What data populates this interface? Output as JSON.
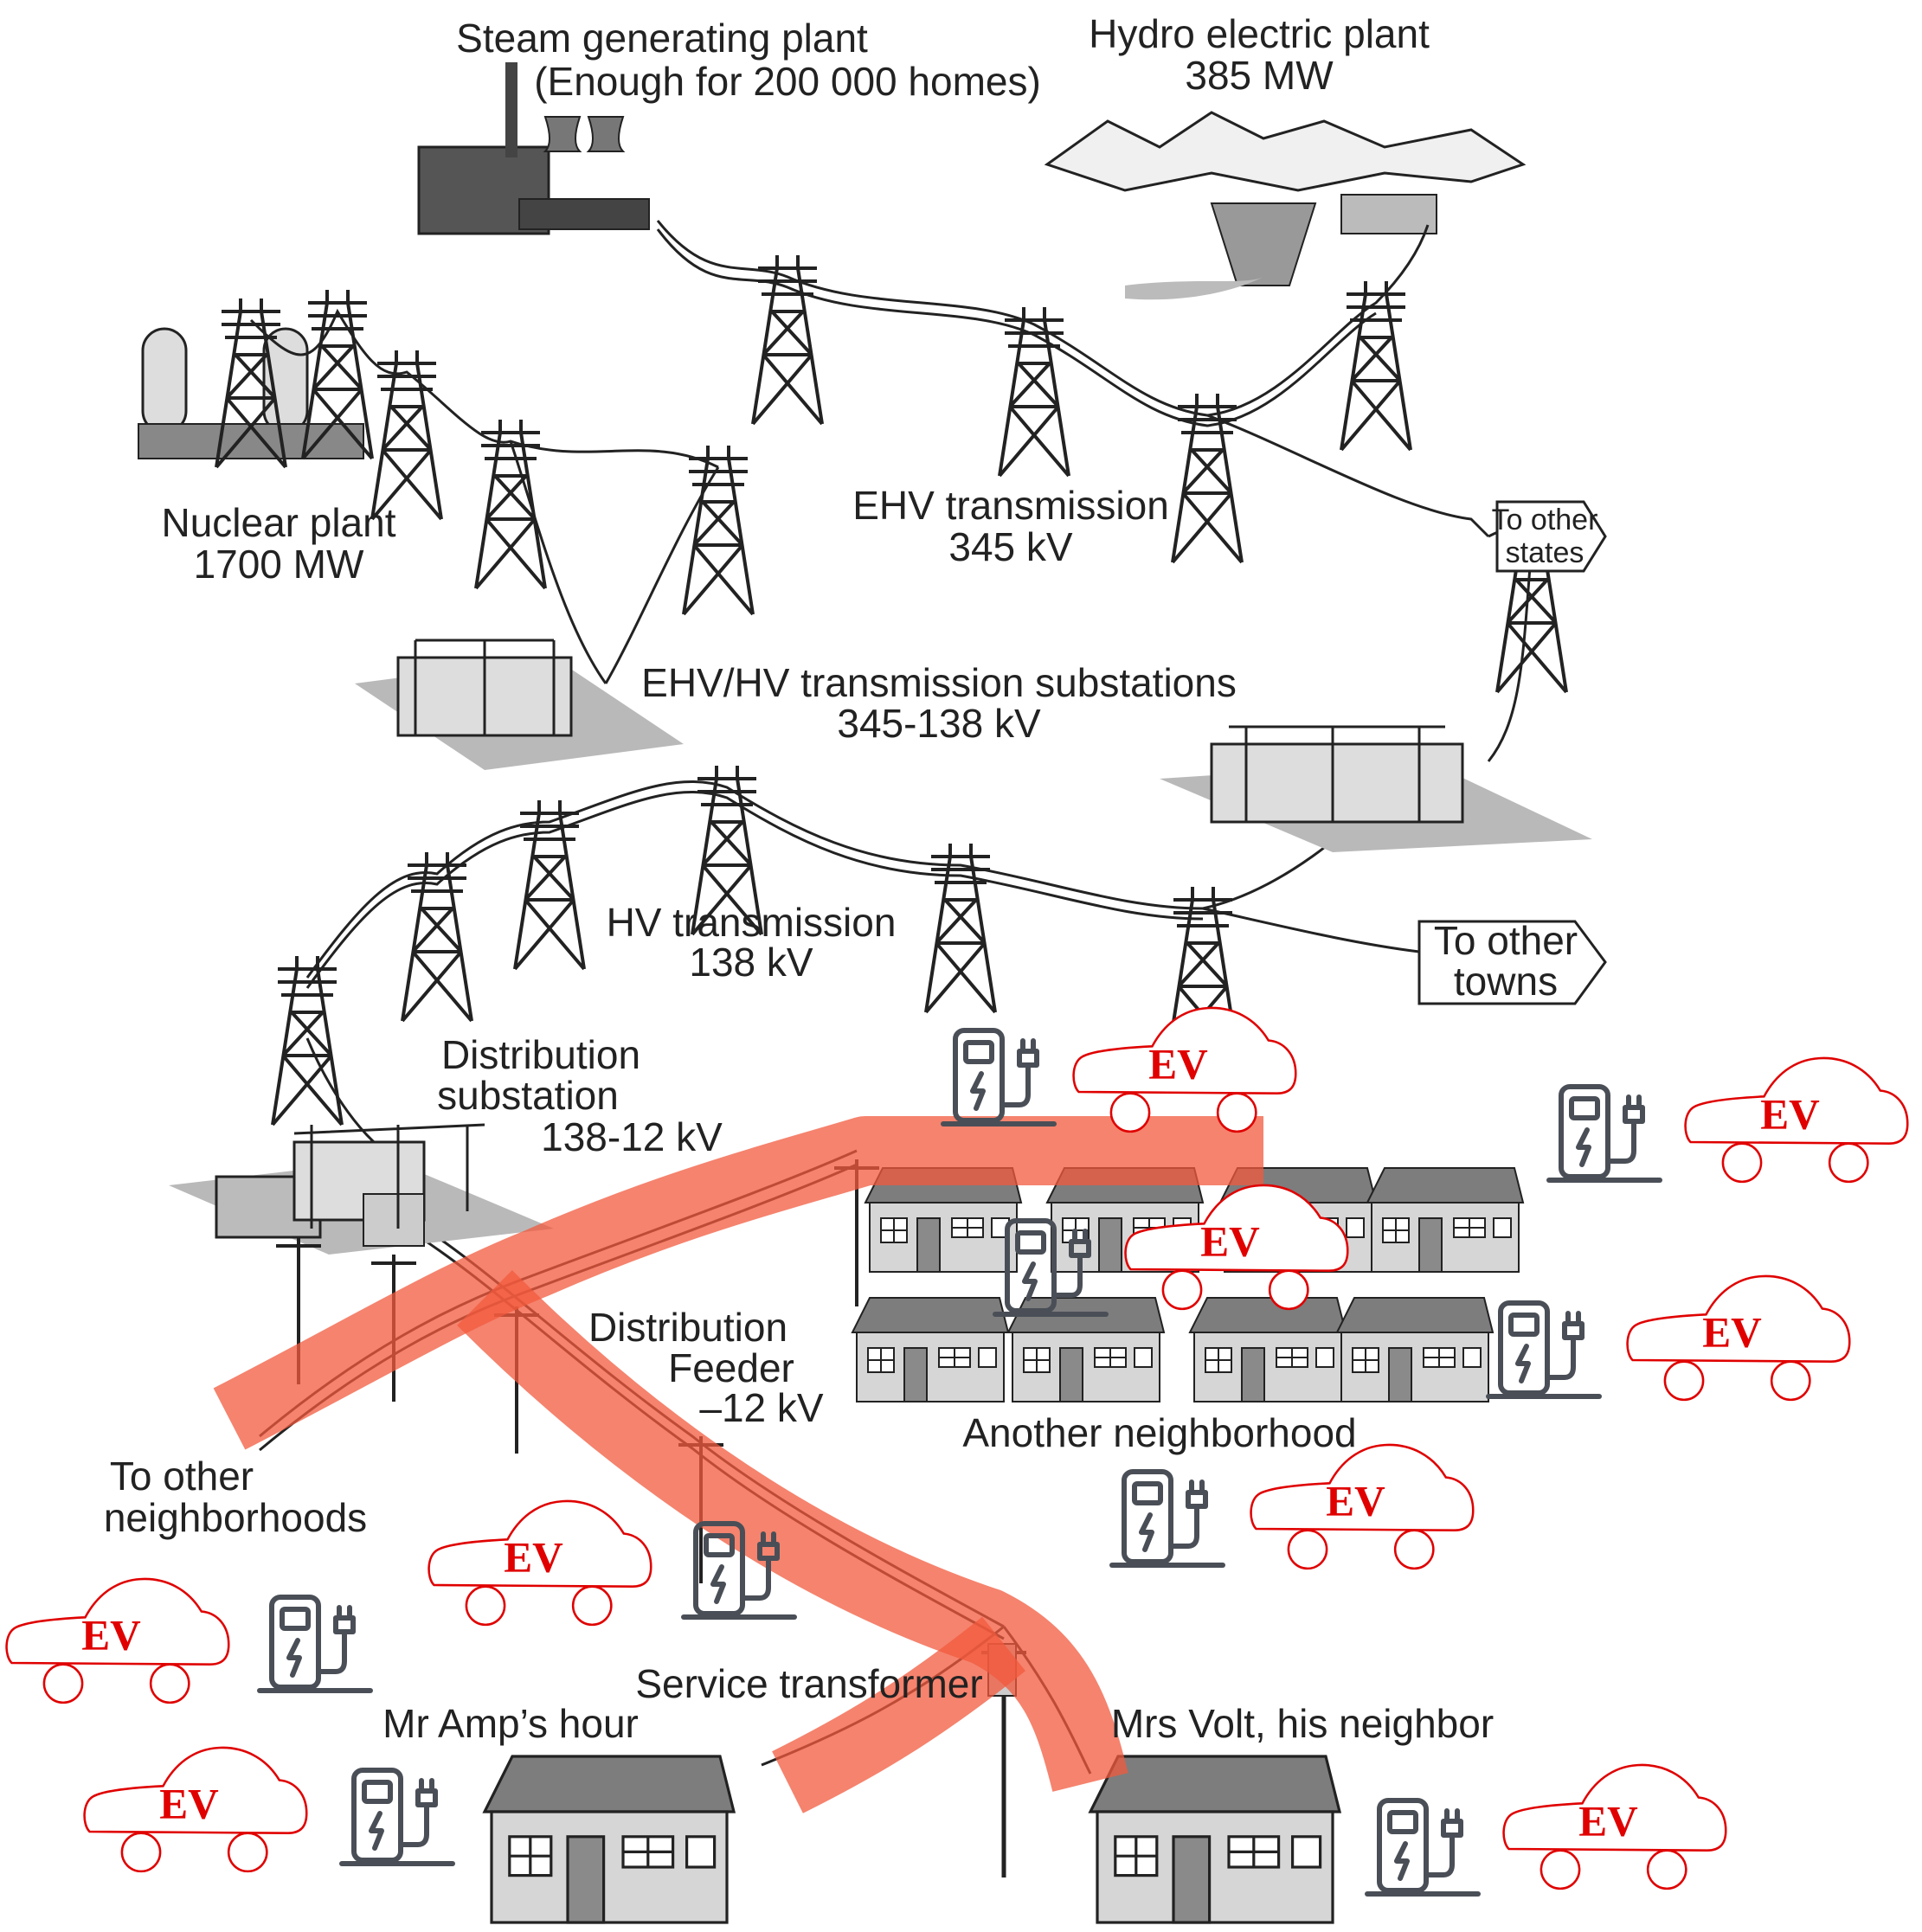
{
  "labels": {
    "steam_title": "Steam generating plant",
    "steam_sub": "(Enough for 200 000 homes)",
    "hydro_title": "Hydro electric plant",
    "hydro_sub": "385 MW",
    "nuclear_title": "Nuclear plant",
    "nuclear_sub": "1700 MW",
    "ehv_title": "EHV transmission",
    "ehv_sub": "345 kV",
    "to_other_states_1": "To other",
    "to_other_states_2": "states",
    "substations_title": "EHV/HV transmission substations",
    "substations_sub": "345-138 kV",
    "hv_title": "HV transmission",
    "hv_sub": "138 kV",
    "to_other_towns_1": "To other",
    "to_other_towns_2": "towns",
    "dist_sub_1": "Distribution",
    "dist_sub_2": "substation",
    "dist_sub_3": "138-12 kV",
    "feeder_1": "Distribution",
    "feeder_2": "Feeder",
    "feeder_3": "–12 kV",
    "another_neighborhood": "Another neighborhood",
    "to_other_neighborhoods_1": "To other",
    "to_other_neighborhoods_2": "neighborhoods",
    "service_transformer": "Service transformer",
    "mr_amp": "Mr Amp’s hour",
    "mrs_volt": "Mrs Volt, his neighbor"
  },
  "ev_label": "EV",
  "colors": {
    "ev_red": "#e00000",
    "highlight": "#f25a3e",
    "line": "#222222",
    "charger": "#4a4f57",
    "ground": "#b9b9b9",
    "roof": "#7d7d7d",
    "wall": "#d6d6d6"
  }
}
